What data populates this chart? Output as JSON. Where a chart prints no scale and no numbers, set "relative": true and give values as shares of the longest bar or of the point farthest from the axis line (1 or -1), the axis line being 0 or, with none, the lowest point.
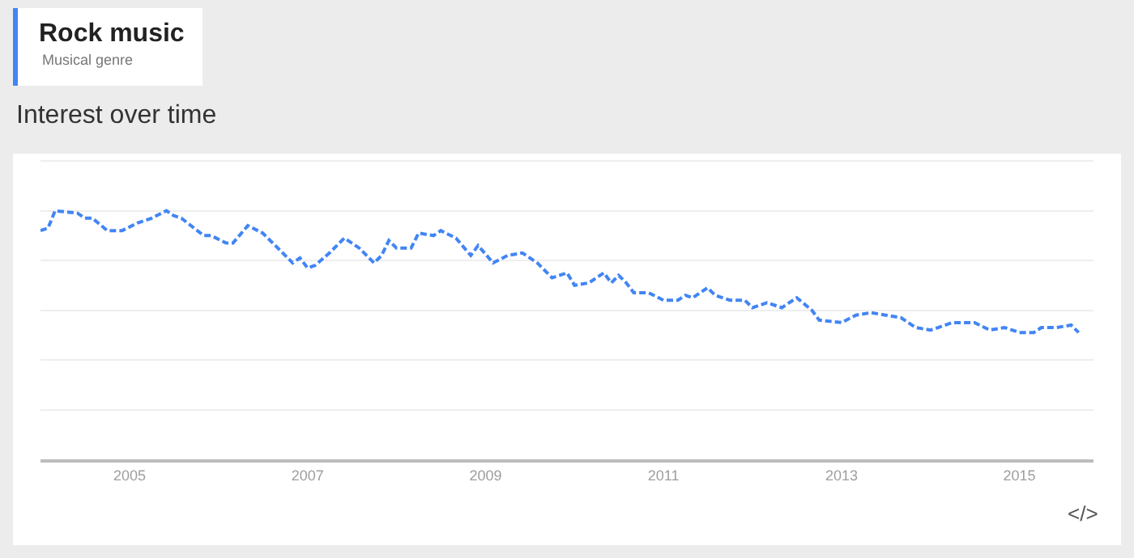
{
  "chart_data": {
    "type": "line",
    "title": "Rock music",
    "subtitle": "Musical genre",
    "annotations": [
      "Interest over time",
      "</>"
    ],
    "relative": true,
    "grid": "y",
    "line_style": "dashed",
    "tick_labels": "x",
    "xlim": [
      "2004-01-01",
      "2015-11-01"
    ],
    "xticks": [
      "2005",
      "2007",
      "2009",
      "2011",
      "2013",
      "2015"
    ],
    "x": [
      "2004-01",
      "2004-02",
      "2004-03",
      "2004-06",
      "2004-07",
      "2004-08",
      "2004-10",
      "2004-11",
      "2004-12",
      "2005-02",
      "2005-04",
      "2005-06",
      "2005-07",
      "2005-08",
      "2005-11",
      "2005-12",
      "2006-02",
      "2006-03",
      "2006-05",
      "2006-07",
      "2006-09",
      "2006-11",
      "2006-12",
      "2007-01",
      "2007-02",
      "2007-04",
      "2007-06",
      "2007-08",
      "2007-10",
      "2007-11",
      "2007-12",
      "2008-01",
      "2008-03",
      "2008-04",
      "2008-06",
      "2008-07",
      "2008-09",
      "2008-11",
      "2008-12",
      "2009-02",
      "2009-04",
      "2009-06",
      "2009-08",
      "2009-10",
      "2009-12",
      "2010-01",
      "2010-03",
      "2010-05",
      "2010-06",
      "2010-07",
      "2010-08",
      "2010-09",
      "2010-11",
      "2011-01",
      "2011-03",
      "2011-04",
      "2011-05",
      "2011-07",
      "2011-08",
      "2011-10",
      "2011-12",
      "2012-01",
      "2012-03",
      "2012-05",
      "2012-07",
      "2012-09",
      "2012-10",
      "2013-01",
      "2013-03",
      "2013-05",
      "2013-07",
      "2013-09",
      "2013-11",
      "2014-01",
      "2014-02",
      "2014-04",
      "2014-07",
      "2014-09",
      "2014-11",
      "2015-01",
      "2015-03",
      "2015-04",
      "2015-06",
      "2015-08",
      "2015-09"
    ],
    "series": [
      {
        "color": "#4285f4",
        "values": [
          0.92,
          0.93,
          1.0,
          0.99,
          0.97,
          0.97,
          0.92,
          0.92,
          0.92,
          0.95,
          0.97,
          1.0,
          0.98,
          0.97,
          0.9,
          0.9,
          0.87,
          0.87,
          0.94,
          0.91,
          0.85,
          0.79,
          0.81,
          0.77,
          0.78,
          0.83,
          0.89,
          0.85,
          0.79,
          0.82,
          0.88,
          0.85,
          0.85,
          0.91,
          0.9,
          0.92,
          0.89,
          0.82,
          0.86,
          0.79,
          0.82,
          0.83,
          0.79,
          0.73,
          0.75,
          0.7,
          0.71,
          0.75,
          0.71,
          0.74,
          0.71,
          0.67,
          0.67,
          0.64,
          0.64,
          0.66,
          0.65,
          0.69,
          0.66,
          0.64,
          0.64,
          0.61,
          0.63,
          0.61,
          0.65,
          0.6,
          0.56,
          0.55,
          0.58,
          0.59,
          0.58,
          0.57,
          0.53,
          0.52,
          0.53,
          0.55,
          0.55,
          0.52,
          0.53,
          0.51,
          0.51,
          0.53,
          0.53,
          0.54,
          0.51
        ]
      }
    ]
  }
}
